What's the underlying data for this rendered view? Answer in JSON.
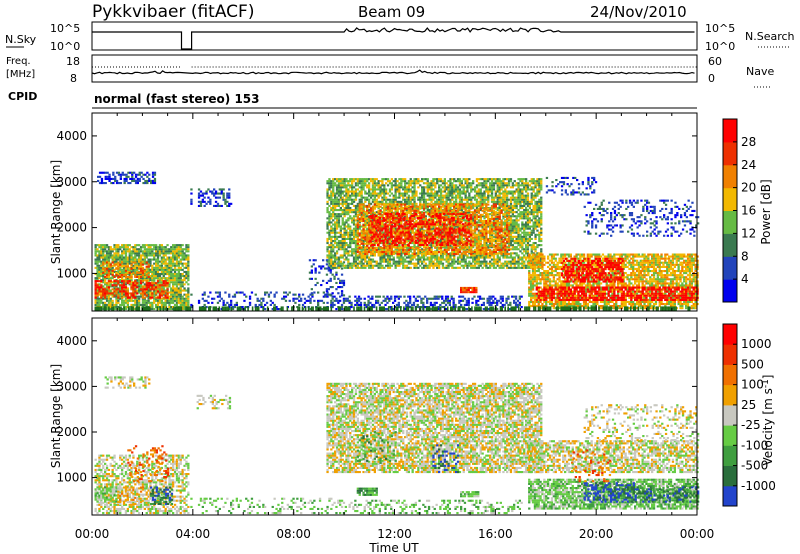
{
  "header": {
    "radar": "Pykkvibaer (fitACF)",
    "beam": "Beam 09",
    "date": "24/Nov/2010"
  },
  "top_panel": {
    "left_label": "N.Sky",
    "right_label": "N.Search",
    "left_ticks": [
      "10^5",
      "10^0"
    ],
    "right_ticks": [
      "10^5",
      "10^0"
    ]
  },
  "freq_panel": {
    "left_label_line1": "Freq.",
    "left_label_line2": "[MHz]",
    "left_ticks": [
      "18",
      "8"
    ],
    "right_ticks": [
      "60",
      "0"
    ],
    "right_label": "Nave"
  },
  "cpid": {
    "label": "CPID",
    "text": "normal (fast stereo) 153"
  },
  "chart_data": [
    {
      "type": "heatmap",
      "quantity": "Power",
      "ylabel": "Slant Range [km]",
      "ylim": [
        180,
        4500
      ],
      "yticks": [
        1000,
        2000,
        3000,
        4000
      ],
      "xlim": [
        0,
        24
      ],
      "colorbar_label": "Power [dB]",
      "colorbar_ticks": [
        "4",
        "8",
        "12",
        "16",
        "20",
        "24",
        "28"
      ],
      "colors": [
        "#0000ee",
        "#2244bb",
        "#3a7a50",
        "#66bb44",
        "#f2b800",
        "#f08000",
        "#ee3000",
        "#ff0000"
      ],
      "scatter_color": "#1c6e1c",
      "regions": [
        {
          "t0": 0.1,
          "t1": 3.8,
          "r0": 200,
          "r1": 1600,
          "level": 3,
          "density": 0.85
        },
        {
          "t0": 0.1,
          "t1": 3.0,
          "r0": 450,
          "r1": 850,
          "level": 6,
          "density": 0.55
        },
        {
          "t0": 0.4,
          "t1": 2.2,
          "r0": 900,
          "r1": 1250,
          "level": 5,
          "density": 0.5
        },
        {
          "t0": 0.2,
          "t1": 2.5,
          "r0": 2950,
          "r1": 3200,
          "level": 1,
          "density": 0.55
        },
        {
          "t0": 3.9,
          "t1": 5.5,
          "r0": 2450,
          "r1": 2850,
          "level": 1,
          "density": 0.45
        },
        {
          "t0": 3.9,
          "t1": 9.5,
          "r0": 200,
          "r1": 600,
          "level": 1,
          "density": 0.3
        },
        {
          "t0": 8.6,
          "t1": 10.0,
          "r0": 500,
          "r1": 1300,
          "level": 1,
          "density": 0.25
        },
        {
          "t0": 9.3,
          "t1": 17.8,
          "r0": 1100,
          "r1": 3050,
          "level": 3,
          "density": 0.75
        },
        {
          "t0": 10.5,
          "t1": 16.5,
          "r0": 1400,
          "r1": 2500,
          "level": 5,
          "density": 0.6
        },
        {
          "t0": 11.0,
          "t1": 15.0,
          "r0": 1600,
          "r1": 2300,
          "level": 7,
          "density": 0.4
        },
        {
          "t0": 9.5,
          "t1": 17.0,
          "r0": 200,
          "r1": 500,
          "level": 1,
          "density": 0.45
        },
        {
          "t0": 14.6,
          "t1": 15.3,
          "r0": 570,
          "r1": 680,
          "level": 6,
          "density": 0.9
        },
        {
          "t0": 17.3,
          "t1": 24.0,
          "r0": 220,
          "r1": 1400,
          "level": 4,
          "density": 0.75
        },
        {
          "t0": 17.6,
          "t1": 24.0,
          "r0": 400,
          "r1": 700,
          "level": 7,
          "density": 0.7
        },
        {
          "t0": 18.6,
          "t1": 21.0,
          "r0": 800,
          "r1": 1300,
          "level": 7,
          "density": 0.55
        },
        {
          "t0": 19.5,
          "t1": 24.0,
          "r0": 1800,
          "r1": 2600,
          "level": 1,
          "density": 0.25
        },
        {
          "t0": 18.0,
          "t1": 20.0,
          "r0": 2700,
          "r1": 3100,
          "level": 1,
          "density": 0.25
        }
      ],
      "scatter_band": {
        "r0": 190,
        "r1": 280
      }
    },
    {
      "type": "heatmap",
      "quantity": "Velocity",
      "ylabel": "Slant Range [km]",
      "ylim": [
        180,
        4500
      ],
      "yticks": [
        1000,
        2000,
        3000,
        4000
      ],
      "xlim": [
        0,
        24
      ],
      "colorbar_label": "Velocity [m s",
      "colorbar_label_sup": "-1",
      "colorbar_ticks": [
        "1000",
        "500",
        "100",
        "25",
        "-25",
        "-100",
        "-500",
        "-1000"
      ],
      "colors": [
        "#2244cc",
        "#2a6e3c",
        "#3f9e3f",
        "#66cc44",
        "#c8c8c0",
        "#f0a000",
        "#f07000",
        "#ee3000",
        "#ff0000"
      ],
      "regions": [
        {
          "t0": 0.1,
          "t1": 3.8,
          "r0": 200,
          "r1": 1500,
          "level": 4,
          "density": 0.55
        },
        {
          "t0": 0.1,
          "t1": 1.0,
          "r0": 450,
          "r1": 800,
          "level": 3,
          "density": 0.6
        },
        {
          "t0": 1.0,
          "t1": 2.0,
          "r0": 400,
          "r1": 800,
          "level": 5,
          "density": 0.5
        },
        {
          "t0": 2.3,
          "t1": 3.2,
          "r0": 400,
          "r1": 800,
          "level": 1,
          "density": 0.55
        },
        {
          "t0": 1.4,
          "t1": 3.0,
          "r0": 900,
          "r1": 1700,
          "level": 6,
          "density": 0.25
        },
        {
          "t0": 0.5,
          "t1": 2.3,
          "r0": 2950,
          "r1": 3200,
          "level": 4,
          "density": 0.4
        },
        {
          "t0": 4.0,
          "t1": 5.5,
          "r0": 2500,
          "r1": 2800,
          "level": 4,
          "density": 0.35
        },
        {
          "t0": 3.9,
          "t1": 9.5,
          "r0": 200,
          "r1": 550,
          "level": 3,
          "density": 0.22
        },
        {
          "t0": 9.3,
          "t1": 17.8,
          "r0": 1100,
          "r1": 3050,
          "level": 4,
          "density": 0.75
        },
        {
          "t0": 10.5,
          "t1": 12.0,
          "r0": 1300,
          "r1": 2000,
          "level": 2,
          "density": 0.2
        },
        {
          "t0": 13.5,
          "t1": 14.5,
          "r0": 1100,
          "r1": 1700,
          "level": 0,
          "density": 0.25
        },
        {
          "t0": 9.5,
          "t1": 17.0,
          "r0": 200,
          "r1": 500,
          "level": 3,
          "density": 0.3
        },
        {
          "t0": 10.5,
          "t1": 11.3,
          "r0": 600,
          "r1": 750,
          "level": 2,
          "density": 0.8
        },
        {
          "t0": 14.6,
          "t1": 15.3,
          "r0": 570,
          "r1": 680,
          "level": 3,
          "density": 0.9
        },
        {
          "t0": 17.3,
          "t1": 24.0,
          "r0": 1100,
          "r1": 1800,
          "level": 4,
          "density": 0.65
        },
        {
          "t0": 17.3,
          "t1": 24.0,
          "r0": 300,
          "r1": 950,
          "level": 3,
          "density": 0.8
        },
        {
          "t0": 19.5,
          "t1": 21.5,
          "r0": 450,
          "r1": 900,
          "level": 0,
          "density": 0.45
        },
        {
          "t0": 21.0,
          "t1": 24.0,
          "r0": 450,
          "r1": 800,
          "level": 1,
          "density": 0.5
        },
        {
          "t0": 19.0,
          "t1": 20.5,
          "r0": 900,
          "r1": 1600,
          "level": 6,
          "density": 0.15
        },
        {
          "t0": 19.5,
          "t1": 24.0,
          "r0": 1800,
          "r1": 2600,
          "level": 4,
          "density": 0.25
        }
      ]
    }
  ],
  "xaxis": {
    "ticks": [
      "00:00",
      "04:00",
      "08:00",
      "12:00",
      "16:00",
      "20:00",
      "00:00"
    ],
    "label": "Time UT"
  }
}
